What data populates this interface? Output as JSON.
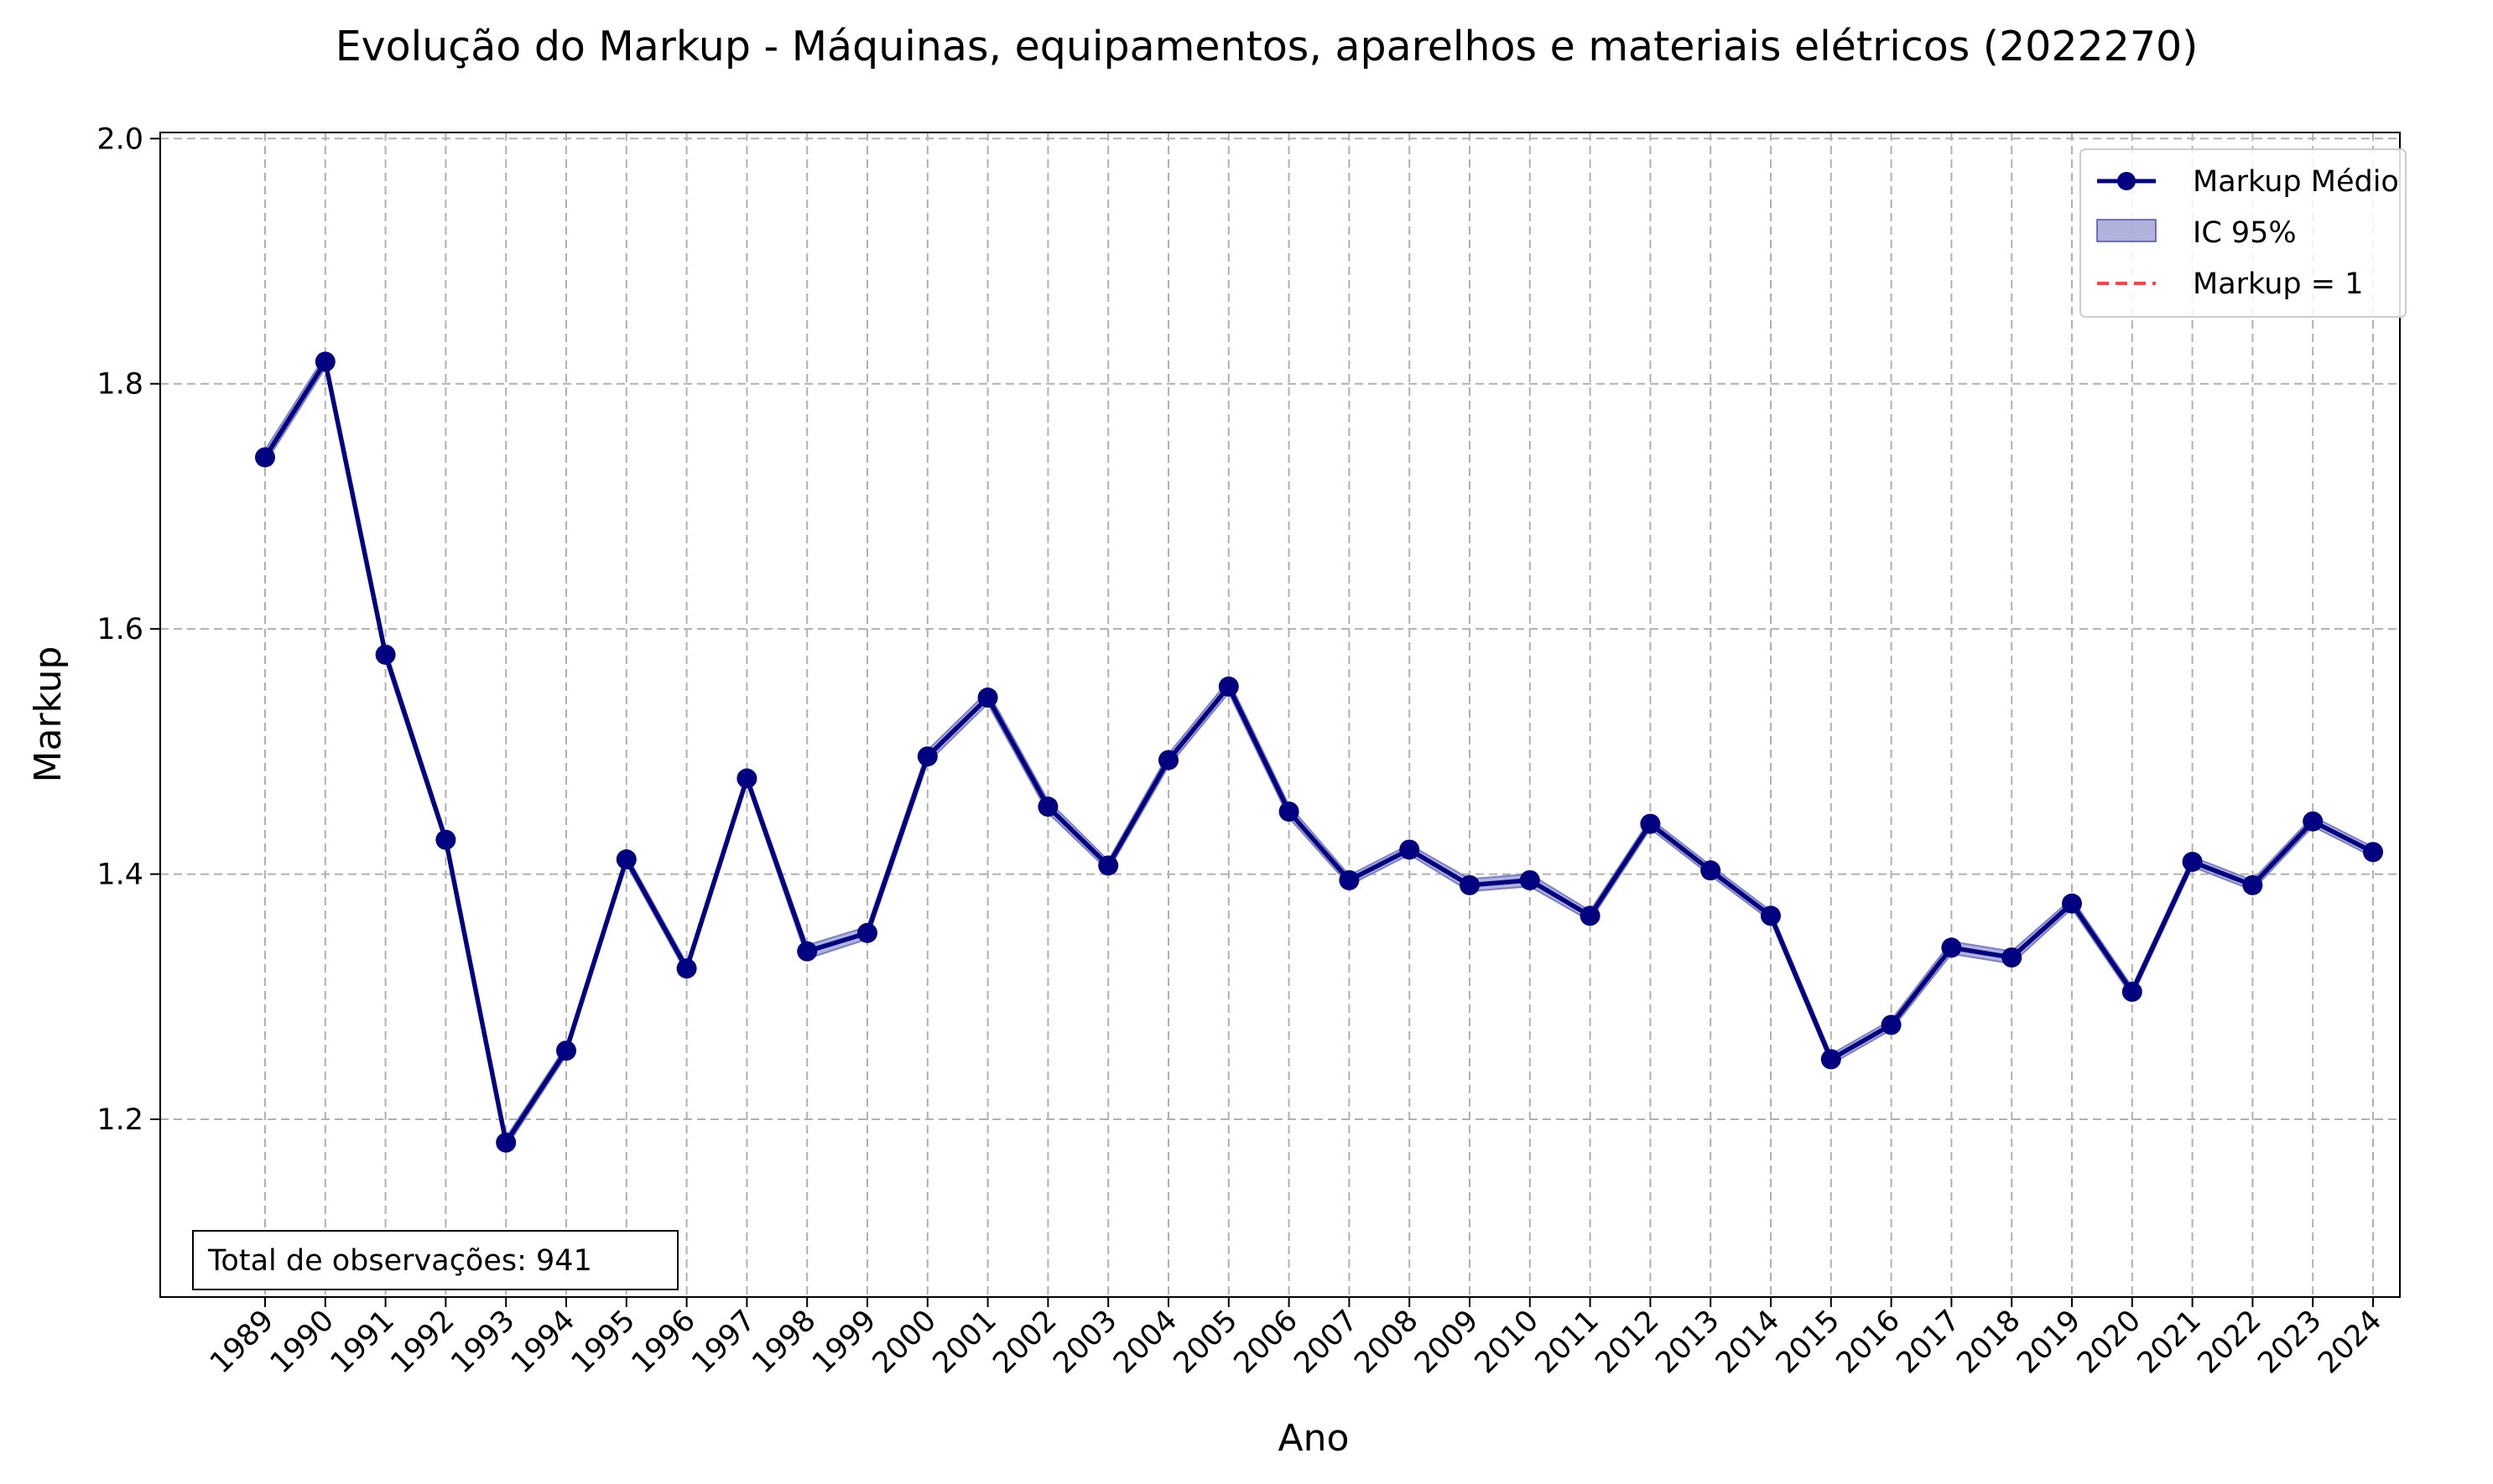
{
  "chart_data": {
    "type": "line",
    "title": "Evolução do Markup - Máquinas, equipamentos, aparelhos e materiais elétricos (2022270)",
    "xlabel": "Ano",
    "ylabel": "Markup",
    "x": [
      1989,
      1990,
      1991,
      1992,
      1993,
      1994,
      1995,
      1996,
      1997,
      1998,
      1999,
      2000,
      2001,
      2002,
      2003,
      2004,
      2005,
      2006,
      2007,
      2008,
      2009,
      2010,
      2011,
      2012,
      2013,
      2014,
      2015,
      2016,
      2017,
      2018,
      2019,
      2020,
      2021,
      2022,
      2023,
      2024
    ],
    "series": [
      {
        "name": "Markup Médio",
        "values": [
          1.74,
          1.818,
          1.579,
          1.428,
          1.181,
          1.256,
          1.412,
          1.323,
          1.478,
          1.337,
          1.352,
          1.496,
          1.544,
          1.455,
          1.407,
          1.493,
          1.553,
          1.451,
          1.395,
          1.42,
          1.391,
          1.395,
          1.366,
          1.441,
          1.403,
          1.366,
          1.249,
          1.277,
          1.34,
          1.332,
          1.376,
          1.304,
          1.41,
          1.391,
          1.443,
          1.418
        ],
        "ci_lower": [
          1.735,
          1.813,
          1.574,
          1.424,
          1.177,
          1.252,
          1.408,
          1.319,
          1.474,
          1.331,
          1.347,
          1.491,
          1.539,
          1.45,
          1.403,
          1.488,
          1.548,
          1.446,
          1.391,
          1.416,
          1.386,
          1.39,
          1.362,
          1.437,
          1.399,
          1.362,
          1.245,
          1.273,
          1.335,
          1.327,
          1.372,
          1.3,
          1.406,
          1.387,
          1.439,
          1.414
        ],
        "ci_upper": [
          1.746,
          1.823,
          1.584,
          1.432,
          1.185,
          1.26,
          1.416,
          1.327,
          1.482,
          1.342,
          1.357,
          1.501,
          1.549,
          1.46,
          1.411,
          1.498,
          1.558,
          1.456,
          1.399,
          1.424,
          1.396,
          1.4,
          1.37,
          1.445,
          1.407,
          1.37,
          1.253,
          1.281,
          1.345,
          1.337,
          1.38,
          1.308,
          1.414,
          1.395,
          1.447,
          1.422
        ],
        "color": "#000080"
      }
    ],
    "reference_line": {
      "name": "Markup = 1",
      "value": 1,
      "color": "#ff0000"
    },
    "legend": {
      "placement": "top-right",
      "entries": [
        "Markup Médio",
        "IC 95%",
        "Markup = 1"
      ]
    },
    "ci_color": "#7b7fc4",
    "ylim": [
      1.055,
      2.005
    ],
    "yticks": [
      1.2,
      1.4,
      1.6,
      1.8,
      2.0
    ],
    "ytick_labels": [
      "1.2",
      "1.4",
      "1.6",
      "1.8",
      "2.0"
    ],
    "grid": true,
    "annotation": "Total de observações: 941"
  }
}
